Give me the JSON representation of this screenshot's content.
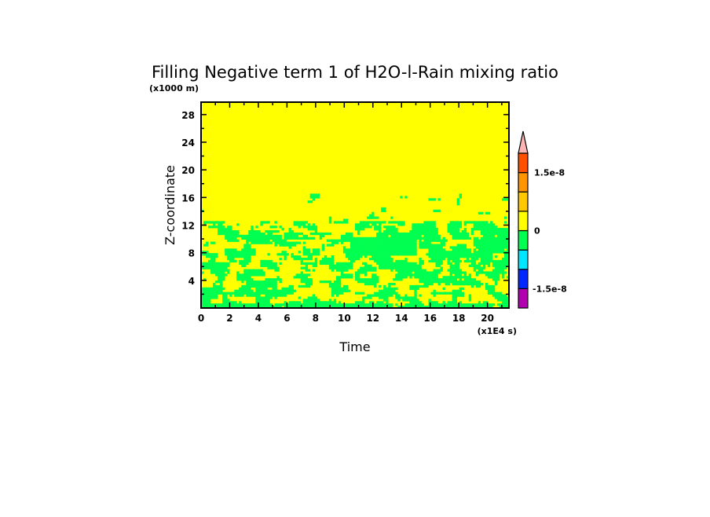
{
  "chart_data": {
    "type": "heatmap",
    "title": "Filling Negative term 1 of H2O-l-Rain mixing ratio",
    "xlabel": "Time",
    "ylabel": "Z-coordinate",
    "x_unit": "(x1E4 s)",
    "y_unit": "(x1000 m)",
    "xlim": [
      0,
      21.5
    ],
    "ylim": [
      0,
      29.8
    ],
    "x_ticks": [
      "0",
      "2",
      "4",
      "6",
      "8",
      "10",
      "12",
      "14",
      "16",
      "18",
      "20"
    ],
    "y_ticks": [
      "4",
      "8",
      "12",
      "16",
      "20",
      "24",
      "28"
    ],
    "colorbar": {
      "levels": [
        -2e-08,
        -1.5e-08,
        -1e-08,
        -5e-09,
        0,
        5e-09,
        1e-08,
        1.5e-08,
        2e-08
      ],
      "colors": [
        "#b000b0",
        "#0028ff",
        "#00e6ff",
        "#00ff50",
        "#ffff00",
        "#ffc800",
        "#ff9600",
        "#ff5000"
      ],
      "extend_color": "#ffb4b4",
      "tick_labels": [
        "1.5e-8",
        "0",
        "-1.5e-8"
      ],
      "tick_values": [
        1.5e-08,
        0,
        -1.5e-08
      ]
    },
    "description_of_field": {
      "background_color": "#ffff00",
      "negative_color": "#00ff50"
    }
  }
}
